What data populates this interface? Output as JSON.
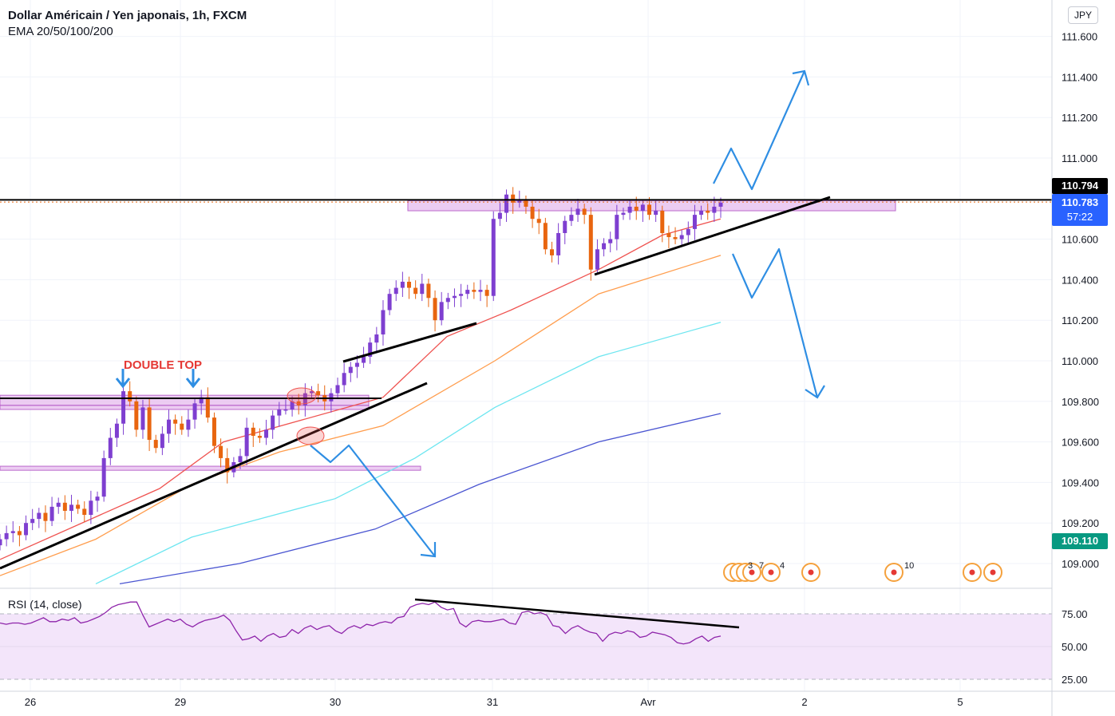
{
  "header": {
    "title": "Dollar Américain / Yen japonais, 1h, FXCM",
    "indicators": "EMA 20/50/100/200"
  },
  "currency_button": "JPY",
  "price_tags": {
    "last_high": {
      "label": "110.794",
      "color": "#000000"
    },
    "current": {
      "price": "110.783",
      "countdown": "57:22",
      "color": "#2962ff"
    },
    "ema_level": {
      "label": "109.110",
      "color": "#089981"
    }
  },
  "annotation": {
    "double_top": "DOUBLE TOP"
  },
  "rsi": {
    "title": "RSI (14, close)"
  },
  "events": {
    "labels": [
      "3",
      "7",
      "4",
      "10"
    ]
  },
  "colors": {
    "bull": "#7e3fd0",
    "bear": "#e8650f",
    "ema20": "#ef5350",
    "ema50": "#ff9d4d",
    "ema100": "#6de6f0",
    "ema200": "#4a55d1",
    "zone_fill": "#e9c4f0",
    "zone_stroke": "#b04fc4",
    "arrow": "#2f8ee3",
    "rsi": "#8e24aa",
    "rsi_band": "#f3e5fa"
  },
  "chart_data": [
    {
      "type": "candlestick",
      "symbol": "USDJPY",
      "timeframe": "1h",
      "ylim": [
        108.9,
        111.7
      ],
      "y_ticks": [
        "109.000",
        "109.200",
        "109.400",
        "109.600",
        "109.800",
        "110.000",
        "110.200",
        "110.400",
        "110.600",
        "111.000",
        "111.200",
        "111.400",
        "111.600"
      ],
      "x_ticks": [
        "26",
        "29",
        "30",
        "31",
        "Avr",
        "2",
        "5"
      ],
      "close_trace": [
        109.12,
        109.15,
        109.16,
        109.14,
        109.2,
        109.22,
        109.25,
        109.21,
        109.28,
        109.3,
        109.26,
        109.29,
        109.27,
        109.24,
        109.31,
        109.33,
        109.52,
        109.62,
        109.69,
        109.85,
        109.8,
        109.66,
        109.77,
        109.61,
        109.57,
        109.64,
        109.71,
        109.69,
        109.66,
        109.71,
        109.79,
        109.82,
        109.72,
        109.58,
        109.52,
        109.45,
        109.5,
        109.53,
        109.67,
        109.63,
        109.62,
        109.66,
        109.73,
        109.76,
        109.76,
        109.8,
        109.78,
        109.84,
        109.85,
        109.83,
        109.8,
        109.84,
        109.88,
        109.94,
        109.97,
        109.99,
        110.02,
        110.09,
        110.13,
        110.25,
        110.33,
        110.36,
        110.39,
        110.36,
        110.33,
        110.38,
        110.31,
        110.2,
        110.29,
        110.31,
        110.32,
        110.33,
        110.35,
        110.34,
        110.35,
        110.32,
        110.7,
        110.73,
        110.82,
        110.78,
        110.79,
        110.76,
        110.7,
        110.68,
        110.55,
        110.52,
        110.63,
        110.69,
        110.72,
        110.75,
        110.72,
        110.45,
        110.55,
        110.58,
        110.6,
        110.72,
        110.73,
        110.76,
        110.74,
        110.77,
        110.72,
        110.74,
        110.63,
        110.61,
        110.6,
        110.62,
        110.65,
        110.72,
        110.74,
        110.73,
        110.76,
        110.78
      ],
      "ema": {
        "EMA 20": [
          [
            0,
            109.02
          ],
          [
            200,
            109.37
          ],
          [
            280,
            109.6
          ],
          [
            480,
            109.82
          ],
          [
            560,
            110.12
          ],
          [
            640,
            110.25
          ],
          [
            750,
            110.45
          ],
          [
            830,
            110.62
          ],
          [
            903,
            110.7
          ]
        ],
        "EMA 50": [
          [
            0,
            108.94
          ],
          [
            120,
            109.12
          ],
          [
            240,
            109.39
          ],
          [
            350,
            109.55
          ],
          [
            480,
            109.68
          ],
          [
            620,
            110.0
          ],
          [
            750,
            110.33
          ],
          [
            903,
            110.52
          ]
        ],
        "EMA 100": [
          [
            120,
            108.9
          ],
          [
            240,
            109.13
          ],
          [
            420,
            109.32
          ],
          [
            520,
            109.52
          ],
          [
            620,
            109.77
          ],
          [
            750,
            110.02
          ],
          [
            903,
            110.19
          ]
        ],
        "EMA 200": [
          [
            150,
            108.9
          ],
          [
            300,
            109.0
          ],
          [
            470,
            109.17
          ],
          [
            600,
            109.39
          ],
          [
            750,
            109.6
          ],
          [
            903,
            109.74
          ]
        ]
      },
      "zones": [
        {
          "from": 110.79,
          "to": 110.74
        },
        {
          "from": 109.83,
          "to": 109.78
        },
        {
          "from": 109.78,
          "to": 109.76
        },
        {
          "from": 109.48,
          "to": 109.46
        }
      ],
      "levels": [
        110.794,
        110.783,
        109.11
      ]
    },
    {
      "type": "line",
      "title": "RSI (14, close)",
      "ylim": [
        20,
        90
      ],
      "y_ticks": [
        "75.00",
        "50.00",
        "25.00"
      ],
      "bands": [
        75,
        25
      ],
      "values": [
        68,
        67,
        68,
        68,
        67,
        68,
        70,
        72,
        69,
        69,
        71,
        70,
        72,
        68,
        69,
        71,
        73,
        76,
        80,
        82,
        83,
        84,
        84,
        74,
        65,
        67,
        69,
        71,
        69,
        71,
        67,
        65,
        68,
        70,
        71,
        72,
        74,
        70,
        62,
        55,
        56,
        58,
        54,
        58,
        60,
        57,
        58,
        63,
        60,
        64,
        66,
        63,
        65,
        66,
        62,
        60,
        64,
        66,
        64,
        67,
        66,
        68,
        69,
        68,
        72,
        73,
        80,
        82,
        83,
        82,
        84,
        80,
        78,
        79,
        68,
        65,
        69,
        70,
        69,
        69,
        70,
        71,
        68,
        67,
        76,
        77,
        75,
        76,
        74,
        66,
        65,
        60,
        64,
        66,
        63,
        61,
        60,
        54,
        59,
        61,
        60,
        62,
        61,
        57,
        58,
        61,
        60,
        59,
        57,
        53,
        52,
        53,
        56,
        58,
        54,
        57,
        58
      ]
    }
  ]
}
